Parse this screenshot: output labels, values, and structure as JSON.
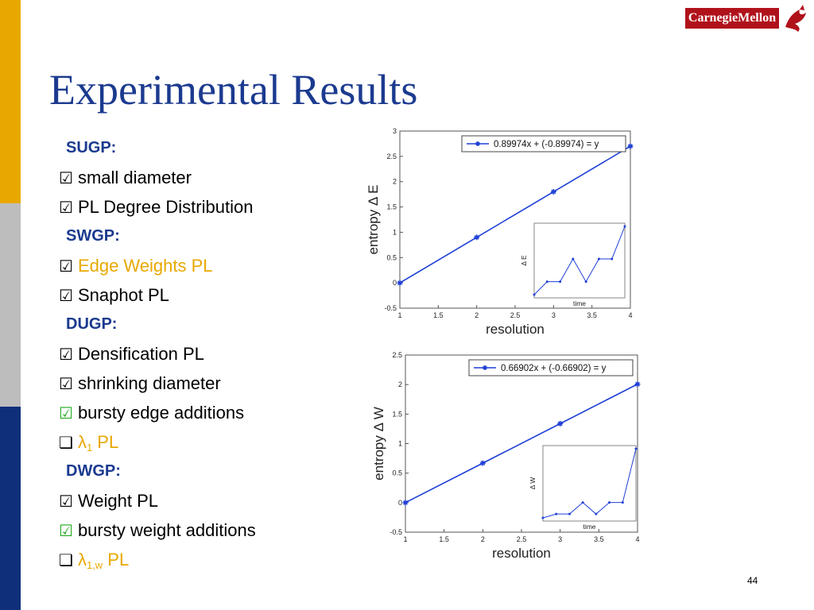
{
  "slide": {
    "title": "Experimental Results",
    "logo_text": "CarnegieMellon",
    "page_number": "44",
    "colors": {
      "title": "#1b3a8f",
      "gold": "#e8a800",
      "gray": "#bdbdbd",
      "navy": "#0f2f7a",
      "check_green": "#22aa22",
      "plot_blue": "#1f3fd6"
    }
  },
  "list": [
    {
      "kind": "head",
      "text": "SUGP:"
    },
    {
      "kind": "item",
      "box": "☑",
      "box_color": "black",
      "text": "small diameter",
      "text_color": "black"
    },
    {
      "kind": "item",
      "box": "☑",
      "box_color": "black",
      "text": "PL Degree Distribution",
      "text_color": "black"
    },
    {
      "kind": "head",
      "text": "SWGP:"
    },
    {
      "kind": "item",
      "box": "☑",
      "box_color": "black",
      "text": "Edge Weights PL",
      "text_color": "orange"
    },
    {
      "kind": "item",
      "box": "☑",
      "box_color": "black",
      "text": "Snaphot PL",
      "text_color": "black"
    },
    {
      "kind": "head",
      "text": "DUGP:"
    },
    {
      "kind": "item",
      "box": "☑",
      "box_color": "black",
      "text": "Densification PL",
      "text_color": "black"
    },
    {
      "kind": "item",
      "box": "☑",
      "box_color": "black",
      "text": "shrinking diameter",
      "text_color": "black"
    },
    {
      "kind": "item",
      "box": "☑",
      "box_color": "green",
      "text": "bursty edge additions",
      "text_color": "black"
    },
    {
      "kind": "item",
      "box": "❑",
      "box_color": "black",
      "text": "λ",
      "sub": "1",
      "suffix": " PL",
      "text_color": "orange"
    },
    {
      "kind": "head",
      "text": "DWGP:"
    },
    {
      "kind": "item",
      "box": "☑",
      "box_color": "black",
      "text": "Weight PL",
      "text_color": "black"
    },
    {
      "kind": "item",
      "box": "☑",
      "box_color": "green",
      "text": "bursty weight additions",
      "text_color": "black"
    },
    {
      "kind": "item",
      "box": "❑",
      "box_color": "black",
      "text": "λ",
      "sub": "1,w",
      "suffix": " PL",
      "text_color": "orange"
    }
  ],
  "chart_data": [
    {
      "type": "line",
      "xlabel": "resolution",
      "ylabel": "entropy Δ E",
      "xlim": [
        1,
        4
      ],
      "ylim": [
        -0.5,
        3
      ],
      "xticks": [
        1,
        1.5,
        2,
        2.5,
        3,
        3.5,
        4
      ],
      "yticks": [
        -0.5,
        0,
        0.5,
        1,
        1.5,
        2,
        2.5,
        3
      ],
      "legend_position": "top-right",
      "series": [
        {
          "name": "0.89974x + (-0.89974) = y",
          "x": [
            1,
            2,
            3,
            4
          ],
          "y": [
            0,
            0.9,
            1.8,
            2.7
          ]
        }
      ],
      "inset": {
        "type": "line",
        "xlabel": "time",
        "ylabel": "Δ E",
        "x": [
          1,
          2,
          3,
          4,
          5,
          6,
          7,
          8
        ],
        "y": [
          0,
          400,
          400,
          1100,
          400,
          1100,
          1100,
          2100
        ]
      }
    },
    {
      "type": "line",
      "xlabel": "resolution",
      "ylabel": "entropy Δ W",
      "xlim": [
        1,
        4
      ],
      "ylim": [
        -0.5,
        2.5
      ],
      "xticks": [
        1,
        1.5,
        2,
        2.5,
        3,
        3.5,
        4
      ],
      "yticks": [
        -0.5,
        0,
        0.5,
        1,
        1.5,
        2,
        2.5
      ],
      "legend_position": "top-right",
      "series": [
        {
          "name": "0.66902x + (-0.66902) = y",
          "x": [
            1,
            2,
            3,
            4
          ],
          "y": [
            0,
            0.669,
            1.338,
            2.007
          ]
        }
      ],
      "inset": {
        "type": "line",
        "xlabel": "time",
        "ylabel": "Δ W",
        "x": [
          1,
          2,
          3,
          4,
          5,
          6,
          7,
          8
        ],
        "y": [
          0,
          0.4,
          0.4,
          1.6,
          0.4,
          1.6,
          1.6,
          7.2
        ]
      }
    }
  ]
}
